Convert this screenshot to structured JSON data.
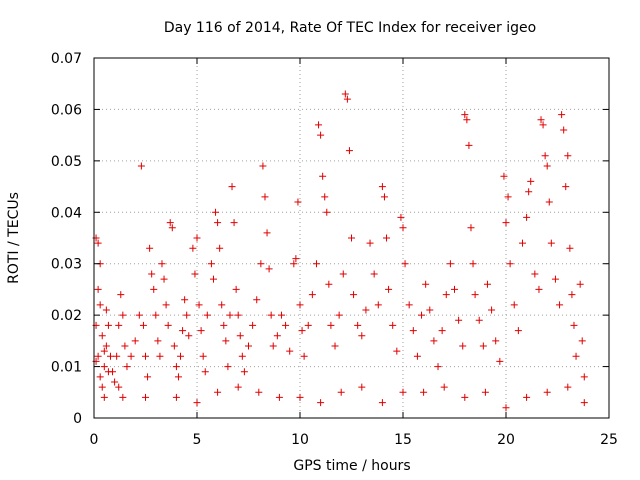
{
  "chart_data": {
    "type": "scatter",
    "title": "Day 116 of 2014, Rate Of TEC Index for receiver igeo",
    "xlabel": "GPS time / hours",
    "ylabel": "ROTI / TECUs",
    "xlim": [
      0,
      25
    ],
    "ylim": [
      0,
      0.07
    ],
    "grid": true,
    "marker": "+",
    "color": "#e00000",
    "x_ticks": [
      "0",
      "5",
      "10",
      "15",
      "20",
      "25"
    ],
    "y_ticks": [
      "0",
      "0.01",
      "0.02",
      "0.03",
      "0.04",
      "0.05",
      "0.06",
      "0.07"
    ],
    "series": [
      {
        "points": [
          [
            0.1,
            0.035
          ],
          [
            0.2,
            0.034
          ],
          [
            0.3,
            0.03
          ],
          [
            0.1,
            0.018
          ],
          [
            0.2,
            0.012
          ],
          [
            0.3,
            0.008
          ],
          [
            0.4,
            0.006
          ],
          [
            0.5,
            0.01
          ],
          [
            0.6,
            0.014
          ],
          [
            0.7,
            0.009
          ],
          [
            0.2,
            0.025
          ],
          [
            0.3,
            0.022
          ],
          [
            0.1,
            0.011
          ],
          [
            0.4,
            0.016
          ],
          [
            0.5,
            0.013
          ],
          [
            0.6,
            0.021
          ],
          [
            0.7,
            0.018
          ],
          [
            0.8,
            0.012
          ],
          [
            0.9,
            0.009
          ],
          [
            1.0,
            0.007
          ],
          [
            1.1,
            0.012
          ],
          [
            1.2,
            0.018
          ],
          [
            1.3,
            0.024
          ],
          [
            1.4,
            0.02
          ],
          [
            1.5,
            0.014
          ],
          [
            1.2,
            0.006
          ],
          [
            1.4,
            0.004
          ],
          [
            1.6,
            0.01
          ],
          [
            1.8,
            0.012
          ],
          [
            2.0,
            0.015
          ],
          [
            2.2,
            0.02
          ],
          [
            2.3,
            0.049
          ],
          [
            2.4,
            0.018
          ],
          [
            2.5,
            0.012
          ],
          [
            2.6,
            0.008
          ],
          [
            2.7,
            0.033
          ],
          [
            2.8,
            0.028
          ],
          [
            2.9,
            0.025
          ],
          [
            3.0,
            0.02
          ],
          [
            3.1,
            0.015
          ],
          [
            3.2,
            0.012
          ],
          [
            3.3,
            0.03
          ],
          [
            3.4,
            0.027
          ],
          [
            3.5,
            0.022
          ],
          [
            3.6,
            0.018
          ],
          [
            3.7,
            0.038
          ],
          [
            3.8,
            0.037
          ],
          [
            3.9,
            0.014
          ],
          [
            4.0,
            0.01
          ],
          [
            4.1,
            0.008
          ],
          [
            4.2,
            0.012
          ],
          [
            4.3,
            0.017
          ],
          [
            4.4,
            0.023
          ],
          [
            4.5,
            0.02
          ],
          [
            4.6,
            0.016
          ],
          [
            4.8,
            0.033
          ],
          [
            4.9,
            0.028
          ],
          [
            5.0,
            0.035
          ],
          [
            5.1,
            0.022
          ],
          [
            5.2,
            0.017
          ],
          [
            5.3,
            0.012
          ],
          [
            5.4,
            0.009
          ],
          [
            5.5,
            0.02
          ],
          [
            5.7,
            0.03
          ],
          [
            5.8,
            0.027
          ],
          [
            5.9,
            0.04
          ],
          [
            6.0,
            0.038
          ],
          [
            6.1,
            0.033
          ],
          [
            6.2,
            0.022
          ],
          [
            6.3,
            0.018
          ],
          [
            6.4,
            0.015
          ],
          [
            6.5,
            0.01
          ],
          [
            6.6,
            0.02
          ],
          [
            6.7,
            0.045
          ],
          [
            6.8,
            0.038
          ],
          [
            6.9,
            0.025
          ],
          [
            7.0,
            0.02
          ],
          [
            7.1,
            0.016
          ],
          [
            7.2,
            0.012
          ],
          [
            7.3,
            0.009
          ],
          [
            7.5,
            0.014
          ],
          [
            7.7,
            0.018
          ],
          [
            7.9,
            0.023
          ],
          [
            8.1,
            0.03
          ],
          [
            8.2,
            0.049
          ],
          [
            8.3,
            0.043
          ],
          [
            8.4,
            0.036
          ],
          [
            8.5,
            0.029
          ],
          [
            8.6,
            0.02
          ],
          [
            8.7,
            0.014
          ],
          [
            8.9,
            0.016
          ],
          [
            9.1,
            0.02
          ],
          [
            9.3,
            0.018
          ],
          [
            9.5,
            0.013
          ],
          [
            9.7,
            0.03
          ],
          [
            9.8,
            0.031
          ],
          [
            9.9,
            0.042
          ],
          [
            10.0,
            0.022
          ],
          [
            10.1,
            0.017
          ],
          [
            10.2,
            0.012
          ],
          [
            10.4,
            0.018
          ],
          [
            10.6,
            0.024
          ],
          [
            10.8,
            0.03
          ],
          [
            10.9,
            0.057
          ],
          [
            11.0,
            0.055
          ],
          [
            11.1,
            0.047
          ],
          [
            11.2,
            0.043
          ],
          [
            11.3,
            0.04
          ],
          [
            11.4,
            0.026
          ],
          [
            11.5,
            0.018
          ],
          [
            11.7,
            0.014
          ],
          [
            11.9,
            0.02
          ],
          [
            12.1,
            0.028
          ],
          [
            12.2,
            0.063
          ],
          [
            12.3,
            0.062
          ],
          [
            12.4,
            0.052
          ],
          [
            12.5,
            0.035
          ],
          [
            12.6,
            0.024
          ],
          [
            12.8,
            0.018
          ],
          [
            13.0,
            0.016
          ],
          [
            13.2,
            0.021
          ],
          [
            13.4,
            0.034
          ],
          [
            13.6,
            0.028
          ],
          [
            13.8,
            0.022
          ],
          [
            14.0,
            0.045
          ],
          [
            14.1,
            0.043
          ],
          [
            14.2,
            0.035
          ],
          [
            14.3,
            0.025
          ],
          [
            14.5,
            0.018
          ],
          [
            14.7,
            0.013
          ],
          [
            14.9,
            0.039
          ],
          [
            15.0,
            0.037
          ],
          [
            15.1,
            0.03
          ],
          [
            15.3,
            0.022
          ],
          [
            15.5,
            0.017
          ],
          [
            15.7,
            0.012
          ],
          [
            15.9,
            0.02
          ],
          [
            16.1,
            0.026
          ],
          [
            16.3,
            0.021
          ],
          [
            16.5,
            0.015
          ],
          [
            16.7,
            0.01
          ],
          [
            16.9,
            0.017
          ],
          [
            17.1,
            0.024
          ],
          [
            17.3,
            0.03
          ],
          [
            17.5,
            0.025
          ],
          [
            17.7,
            0.019
          ],
          [
            17.9,
            0.014
          ],
          [
            18.0,
            0.059
          ],
          [
            18.1,
            0.058
          ],
          [
            18.2,
            0.053
          ],
          [
            18.3,
            0.037
          ],
          [
            18.4,
            0.03
          ],
          [
            18.5,
            0.024
          ],
          [
            18.7,
            0.019
          ],
          [
            18.9,
            0.014
          ],
          [
            19.1,
            0.026
          ],
          [
            19.3,
            0.021
          ],
          [
            19.5,
            0.015
          ],
          [
            19.7,
            0.011
          ],
          [
            19.9,
            0.047
          ],
          [
            20.0,
            0.038
          ],
          [
            20.1,
            0.043
          ],
          [
            20.2,
            0.03
          ],
          [
            20.4,
            0.022
          ],
          [
            20.6,
            0.017
          ],
          [
            20.8,
            0.034
          ],
          [
            21.0,
            0.039
          ],
          [
            21.1,
            0.044
          ],
          [
            21.2,
            0.046
          ],
          [
            21.4,
            0.028
          ],
          [
            21.6,
            0.025
          ],
          [
            21.7,
            0.058
          ],
          [
            21.8,
            0.057
          ],
          [
            21.9,
            0.051
          ],
          [
            22.0,
            0.049
          ],
          [
            22.1,
            0.042
          ],
          [
            22.2,
            0.034
          ],
          [
            22.4,
            0.027
          ],
          [
            22.6,
            0.022
          ],
          [
            22.7,
            0.059
          ],
          [
            22.8,
            0.056
          ],
          [
            22.9,
            0.045
          ],
          [
            23.0,
            0.051
          ],
          [
            23.1,
            0.033
          ],
          [
            23.2,
            0.024
          ],
          [
            23.3,
            0.018
          ],
          [
            23.4,
            0.012
          ],
          [
            23.6,
            0.026
          ],
          [
            23.7,
            0.015
          ],
          [
            23.8,
            0.008
          ],
          [
            0.5,
            0.004
          ],
          [
            2.5,
            0.004
          ],
          [
            4.0,
            0.004
          ],
          [
            5.0,
            0.003
          ],
          [
            6.0,
            0.005
          ],
          [
            7.0,
            0.006
          ],
          [
            8.0,
            0.005
          ],
          [
            9.0,
            0.004
          ],
          [
            10.0,
            0.004
          ],
          [
            11.0,
            0.003
          ],
          [
            12.0,
            0.005
          ],
          [
            13.0,
            0.006
          ],
          [
            14.0,
            0.003
          ],
          [
            15.0,
            0.005
          ],
          [
            16.0,
            0.005
          ],
          [
            17.0,
            0.006
          ],
          [
            18.0,
            0.004
          ],
          [
            19.0,
            0.005
          ],
          [
            20.0,
            0.002
          ],
          [
            21.0,
            0.004
          ],
          [
            22.0,
            0.005
          ],
          [
            23.0,
            0.006
          ],
          [
            23.8,
            0.003
          ]
        ]
      }
    ]
  }
}
